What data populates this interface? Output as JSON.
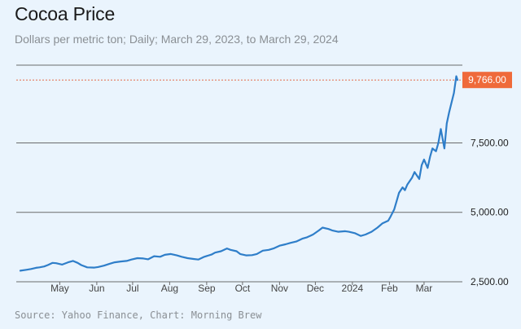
{
  "header": {
    "title": "Cocoa Price",
    "subtitle": "Dollars per metric ton; Daily; March 29, 2023, to March 29, 2024"
  },
  "footer": {
    "source": "Source: Yahoo Finance, Chart: Morning Brew"
  },
  "colors": {
    "line": "#2f7ec9",
    "badge": "#ef6a3a",
    "refline": "#e46a4a",
    "grid": "#6b6b6b",
    "background": "#eaf4fd"
  },
  "chart_data": {
    "type": "line",
    "title": "Cocoa Price",
    "subtitle": "Dollars per metric ton; Daily; March 29, 2023, to March 29, 2024",
    "xlabel": "",
    "ylabel": "",
    "x_tick_labels": [
      "May",
      "Jun",
      "Jul",
      "Aug",
      "Sep",
      "Oct",
      "Nov",
      "Dec",
      "2024",
      "Feb",
      "Mar"
    ],
    "y_tick_labels": [
      "2,500.00",
      "5,000.00",
      "7,500.00"
    ],
    "y_ticks": [
      2500,
      5000,
      7500
    ],
    "ylim": [
      2500,
      10300
    ],
    "xlim": [
      "2023-03-29",
      "2024-03-29"
    ],
    "grid": "horizontal",
    "last_value_label": "9,766.00",
    "last_value": 9766,
    "series": [
      {
        "x": [
          "2023-03-29",
          "2023-04-03",
          "2023-04-07",
          "2023-04-11",
          "2023-04-14",
          "2023-04-18",
          "2023-04-21",
          "2023-04-25",
          "2023-04-28",
          "2023-05-03",
          "2023-05-08",
          "2023-05-12",
          "2023-05-16",
          "2023-05-19",
          "2023-05-24",
          "2023-05-30",
          "2023-06-02",
          "2023-06-07",
          "2023-06-12",
          "2023-06-16",
          "2023-06-21",
          "2023-06-26",
          "2023-06-30",
          "2023-07-05",
          "2023-07-10",
          "2023-07-14",
          "2023-07-19",
          "2023-07-24",
          "2023-07-28",
          "2023-08-02",
          "2023-08-07",
          "2023-08-11",
          "2023-08-16",
          "2023-08-21",
          "2023-08-25",
          "2023-08-30",
          "2023-09-05",
          "2023-09-08",
          "2023-09-13",
          "2023-09-18",
          "2023-09-21",
          "2023-09-26",
          "2023-09-29",
          "2023-10-04",
          "2023-10-09",
          "2023-10-13",
          "2023-10-18",
          "2023-10-23",
          "2023-10-27",
          "2023-11-01",
          "2023-11-06",
          "2023-11-10",
          "2023-11-15",
          "2023-11-20",
          "2023-11-24",
          "2023-11-29",
          "2023-12-04",
          "2023-12-07",
          "2023-12-12",
          "2023-12-15",
          "2023-12-20",
          "2023-12-26",
          "2023-12-29",
          "2024-01-03",
          "2024-01-08",
          "2024-01-12",
          "2024-01-17",
          "2024-01-22",
          "2024-01-26",
          "2024-01-31",
          "2024-02-02",
          "2024-02-05",
          "2024-02-07",
          "2024-02-09",
          "2024-02-12",
          "2024-02-14",
          "2024-02-16",
          "2024-02-20",
          "2024-02-22",
          "2024-02-26",
          "2024-02-28",
          "2024-03-01",
          "2024-03-04",
          "2024-03-06",
          "2024-03-08",
          "2024-03-11",
          "2024-03-13",
          "2024-03-15",
          "2024-03-18",
          "2024-03-20",
          "2024-03-22",
          "2024-03-26",
          "2024-03-28",
          "2024-03-29"
        ],
        "values": [
          2900,
          2930,
          2960,
          3000,
          3020,
          3050,
          3100,
          3180,
          3170,
          3120,
          3200,
          3250,
          3180,
          3100,
          3020,
          3010,
          3030,
          3080,
          3150,
          3200,
          3230,
          3250,
          3300,
          3350,
          3340,
          3310,
          3420,
          3400,
          3470,
          3500,
          3450,
          3400,
          3350,
          3320,
          3300,
          3400,
          3480,
          3550,
          3600,
          3700,
          3650,
          3600,
          3500,
          3450,
          3460,
          3500,
          3620,
          3650,
          3700,
          3800,
          3850,
          3900,
          3950,
          4050,
          4100,
          4200,
          4350,
          4450,
          4400,
          4350,
          4300,
          4320,
          4300,
          4250,
          4150,
          4200,
          4300,
          4450,
          4600,
          4700,
          4850,
          5100,
          5400,
          5700,
          5900,
          5800,
          6000,
          6250,
          6450,
          6200,
          6700,
          6900,
          6600,
          7000,
          7300,
          7200,
          7500,
          8000,
          7300,
          8200,
          8600,
          9300,
          9900,
          9766
        ]
      }
    ]
  }
}
